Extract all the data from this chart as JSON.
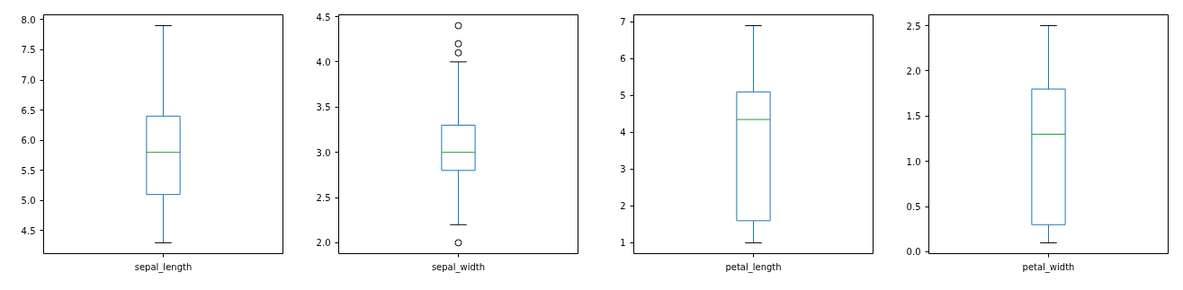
{
  "chart_data": [
    {
      "type": "box",
      "categories": [
        "sepal_length"
      ],
      "series": [
        {
          "color": "#1f77b4",
          "boxes": [
            {
              "low": 4.3,
              "q1": 5.1,
              "median": 5.8,
              "q3": 6.4,
              "high": 7.9
            }
          ]
        }
      ],
      "ylim": [
        4.12,
        8.08
      ],
      "yticks": [
        {
          "value": 4.5,
          "label": "4.5"
        },
        {
          "value": 5.0,
          "label": "5.0"
        },
        {
          "value": 5.5,
          "label": "5.5"
        },
        {
          "value": 6.0,
          "label": "6.0"
        },
        {
          "value": 6.5,
          "label": "6.5"
        },
        {
          "value": 7.0,
          "label": "7.0"
        },
        {
          "value": 7.5,
          "label": "7.5"
        },
        {
          "value": 8.0,
          "label": "8.0"
        }
      ],
      "grid": false
    },
    {
      "type": "box",
      "categories": [
        "sepal_width"
      ],
      "series": [
        {
          "color": "#1f77b4",
          "boxes": [
            {
              "low": 2.2,
              "q1": 2.8,
              "median": 3.0,
              "q3": 3.3,
              "high": 4.0,
              "outliers": [
                4.4,
                4.1,
                4.2,
                2.0
              ]
            }
          ]
        }
      ],
      "ylim": [
        1.88,
        4.52
      ],
      "yticks": [
        {
          "value": 2.0,
          "label": "2.0"
        },
        {
          "value": 2.5,
          "label": "2.5"
        },
        {
          "value": 3.0,
          "label": "3.0"
        },
        {
          "value": 3.5,
          "label": "3.5"
        },
        {
          "value": 4.0,
          "label": "4.0"
        },
        {
          "value": 4.5,
          "label": "4.5"
        }
      ],
      "grid": false
    },
    {
      "type": "box",
      "categories": [
        "petal_length"
      ],
      "series": [
        {
          "color": "#1f77b4",
          "boxes": [
            {
              "low": 1.0,
              "q1": 1.6,
              "median": 4.35,
              "q3": 5.1,
              "high": 6.9
            }
          ]
        }
      ],
      "ylim": [
        0.705,
        7.195
      ],
      "yticks": [
        1,
        2,
        3,
        4,
        5,
        6,
        7
      ],
      "grid": false
    },
    {
      "type": "box",
      "categories": [
        "petal_width"
      ],
      "series": [
        {
          "color": "#1f77b4",
          "boxes": [
            {
              "low": 0.1,
              "q1": 0.3,
              "median": 1.3,
              "q3": 1.8,
              "high": 2.5
            }
          ]
        }
      ],
      "ylim": [
        -0.02,
        2.62
      ],
      "yticks": [
        {
          "value": 0.0,
          "label": "0.0"
        },
        {
          "value": 0.5,
          "label": "0.5"
        },
        {
          "value": 1.0,
          "label": "1.0"
        },
        {
          "value": 1.5,
          "label": "1.5"
        },
        {
          "value": 2.0,
          "label": "2.0"
        },
        {
          "value": 2.5,
          "label": "2.5"
        }
      ],
      "grid": false
    }
  ]
}
